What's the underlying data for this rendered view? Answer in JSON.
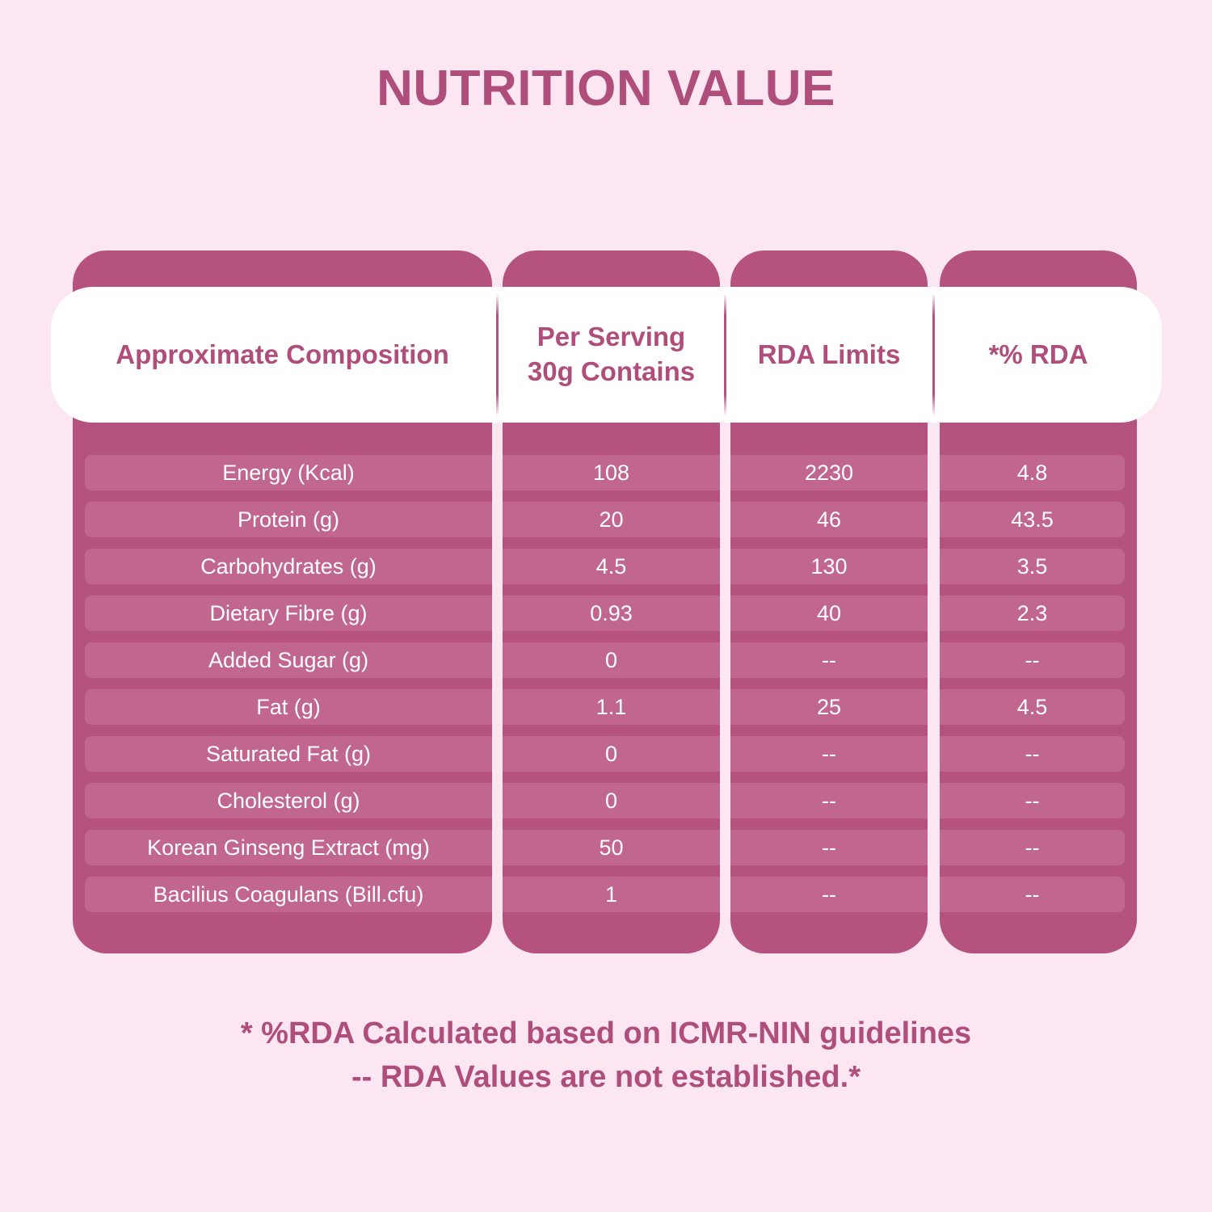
{
  "title": "NUTRITION VALUE",
  "table": {
    "headers": [
      "Approximate Composition",
      "Per Serving\n30g Contains",
      "RDA Limits",
      "*% RDA"
    ],
    "rows": [
      {
        "label": "Energy (Kcal)",
        "per_serving": "108",
        "rda_limit": "2230",
        "rda_percent": "4.8"
      },
      {
        "label": "Protein (g)",
        "per_serving": "20",
        "rda_limit": "46",
        "rda_percent": "43.5"
      },
      {
        "label": "Carbohydrates (g)",
        "per_serving": "4.5",
        "rda_limit": "130",
        "rda_percent": "3.5"
      },
      {
        "label": "Dietary Fibre (g)",
        "per_serving": "0.93",
        "rda_limit": "40",
        "rda_percent": "2.3"
      },
      {
        "label": "Added Sugar (g)",
        "per_serving": "0",
        "rda_limit": "--",
        "rda_percent": "--"
      },
      {
        "label": "Fat (g)",
        "per_serving": "1.1",
        "rda_limit": "25",
        "rda_percent": "4.5"
      },
      {
        "label": "Saturated Fat (g)",
        "per_serving": "0",
        "rda_limit": "--",
        "rda_percent": "--"
      },
      {
        "label": "Cholesterol (g)",
        "per_serving": "0",
        "rda_limit": "--",
        "rda_percent": "--"
      },
      {
        "label": "Korean Ginseng Extract (mg)",
        "per_serving": "50",
        "rda_limit": "--",
        "rda_percent": "--"
      },
      {
        "label": "Bacilius Coagulans (Bill.cfu)",
        "per_serving": "1",
        "rda_limit": "--",
        "rda_percent": "--"
      }
    ]
  },
  "footnotes": [
    "* %RDA Calculated based on ICMR-NIN guidelines",
    "-- RDA Values are not established.*"
  ],
  "colors": {
    "background": "#fce6f1",
    "column": "#b5527e",
    "stripe": "#c0668f",
    "accent_text": "#b04e7b",
    "row_text": "#ffffff",
    "header_band": "#ffffff"
  }
}
